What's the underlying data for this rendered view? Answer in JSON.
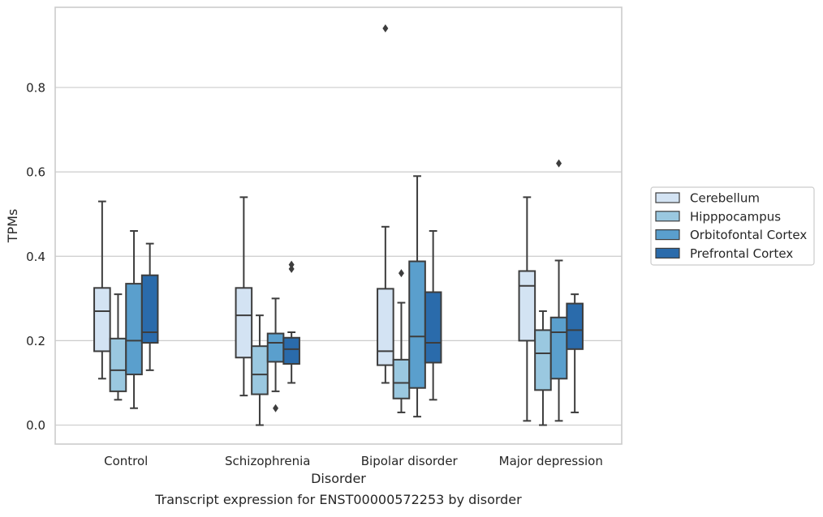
{
  "chart_data": {
    "type": "box",
    "caption": "Transcript expression for ENST00000572253 by disorder",
    "xlabel": "Disorder",
    "ylabel": "TPMs",
    "ylim": [
      -0.045,
      0.99
    ],
    "yticks": [
      0.0,
      0.2,
      0.4,
      0.6,
      0.8
    ],
    "ytick_labels": [
      "0.0",
      "0.2",
      "0.4",
      "0.6",
      "0.8"
    ],
    "grid": "horizontal",
    "legend_position": "right",
    "categories": [
      "Control",
      "Schizophrenia",
      "Bipolar disorder",
      "Major depression"
    ],
    "series": [
      {
        "name": "Cerebellum",
        "color": "#d3e3f3",
        "boxes": [
          {
            "whislo": 0.11,
            "q1": 0.175,
            "med": 0.27,
            "q3": 0.325,
            "whishi": 0.53,
            "fliers": []
          },
          {
            "whislo": 0.07,
            "q1": 0.16,
            "med": 0.26,
            "q3": 0.325,
            "whishi": 0.54,
            "fliers": []
          },
          {
            "whislo": 0.1,
            "q1": 0.142,
            "med": 0.175,
            "q3": 0.323,
            "whishi": 0.47,
            "fliers": [
              0.94
            ]
          },
          {
            "whislo": 0.01,
            "q1": 0.2,
            "med": 0.33,
            "q3": 0.365,
            "whishi": 0.54,
            "fliers": []
          }
        ]
      },
      {
        "name": "Hipppocampus",
        "color": "#9ac8e0",
        "boxes": [
          {
            "whislo": 0.06,
            "q1": 0.08,
            "med": 0.13,
            "q3": 0.205,
            "whishi": 0.31,
            "fliers": []
          },
          {
            "whislo": 0.0,
            "q1": 0.073,
            "med": 0.12,
            "q3": 0.187,
            "whishi": 0.26,
            "fliers": []
          },
          {
            "whislo": 0.03,
            "q1": 0.063,
            "med": 0.1,
            "q3": 0.155,
            "whishi": 0.29,
            "fliers": [
              0.36
            ]
          },
          {
            "whislo": 0.0,
            "q1": 0.083,
            "med": 0.17,
            "q3": 0.225,
            "whishi": 0.27,
            "fliers": []
          }
        ]
      },
      {
        "name": "Orbitofontal Cortex",
        "color": "#5a9fcd",
        "boxes": [
          {
            "whislo": 0.04,
            "q1": 0.12,
            "med": 0.2,
            "q3": 0.335,
            "whishi": 0.46,
            "fliers": []
          },
          {
            "whislo": 0.08,
            "q1": 0.15,
            "med": 0.195,
            "q3": 0.217,
            "whishi": 0.3,
            "fliers": [
              0.04
            ]
          },
          {
            "whislo": 0.02,
            "q1": 0.088,
            "med": 0.21,
            "q3": 0.388,
            "whishi": 0.59,
            "fliers": []
          },
          {
            "whislo": 0.01,
            "q1": 0.11,
            "med": 0.22,
            "q3": 0.255,
            "whishi": 0.39,
            "fliers": [
              0.62
            ]
          }
        ]
      },
      {
        "name": "Prefrontal Cortex",
        "color": "#2a6bab",
        "boxes": [
          {
            "whislo": 0.13,
            "q1": 0.195,
            "med": 0.22,
            "q3": 0.355,
            "whishi": 0.43,
            "fliers": []
          },
          {
            "whislo": 0.1,
            "q1": 0.145,
            "med": 0.18,
            "q3": 0.207,
            "whishi": 0.22,
            "fliers": [
              0.37,
              0.38
            ]
          },
          {
            "whislo": 0.06,
            "q1": 0.148,
            "med": 0.195,
            "q3": 0.315,
            "whishi": 0.46,
            "fliers": []
          },
          {
            "whislo": 0.03,
            "q1": 0.18,
            "med": 0.225,
            "q3": 0.288,
            "whishi": 0.31,
            "fliers": []
          }
        ]
      }
    ]
  },
  "colors": {
    "grid": "#cccccc",
    "frame": "#cccccc",
    "line": "#3d3d3d",
    "text": "#262626"
  }
}
